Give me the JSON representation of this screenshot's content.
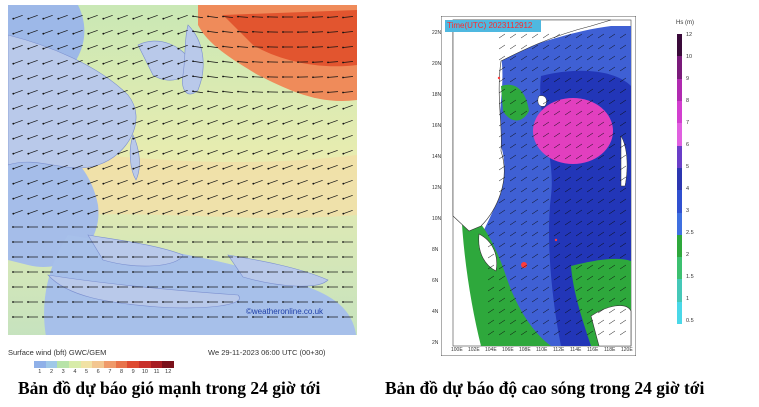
{
  "left_panel": {
    "watermark": "©weatheronline.co.uk",
    "footer_left": "Surface wind (bft)  GWC/GEM",
    "footer_right": "We 29-11-2023 06:00 UTC (00+30)",
    "scale_labels": [
      "1",
      "2",
      "3",
      "4",
      "5",
      "6",
      "7",
      "8",
      "9",
      "10",
      "11",
      "12"
    ],
    "colors": {
      "sea_calm": "#8fb0e8",
      "sea_mid": "#b7e3a8",
      "sea_warm": "#f1d9a5",
      "strong": "#e9633d",
      "land": "#b9c9ea"
    }
  },
  "right_panel": {
    "title": "Time(UTC) 2023112912",
    "lat_labels": [
      "22N",
      "20N",
      "18N",
      "16N",
      "14N",
      "12N",
      "10N",
      "8N",
      "6N",
      "4N",
      "2N"
    ],
    "lon_labels": [
      "100E",
      "102E",
      "104E",
      "106E",
      "108E",
      "110E",
      "112E",
      "114E",
      "116E",
      "118E",
      "120E"
    ],
    "legend_title": "Hs (m)",
    "legend_labels": [
      "12",
      "10",
      "9",
      "8",
      "7",
      "6",
      "5",
      "4",
      "3",
      "2.5",
      "2",
      "1.5",
      "1",
      "0.5"
    ],
    "colors": {
      "deep": "#1f2fb0",
      "mid": "#3f60d4",
      "green": "#2ea83c",
      "high": "#e23fbf",
      "land": "#ffffff"
    }
  },
  "captions": {
    "left": "Bản đồ dự báo gió mạnh trong 24 giờ tới",
    "right": "Bản đồ dự báo độ cao sóng trong 24 giờ tới"
  }
}
